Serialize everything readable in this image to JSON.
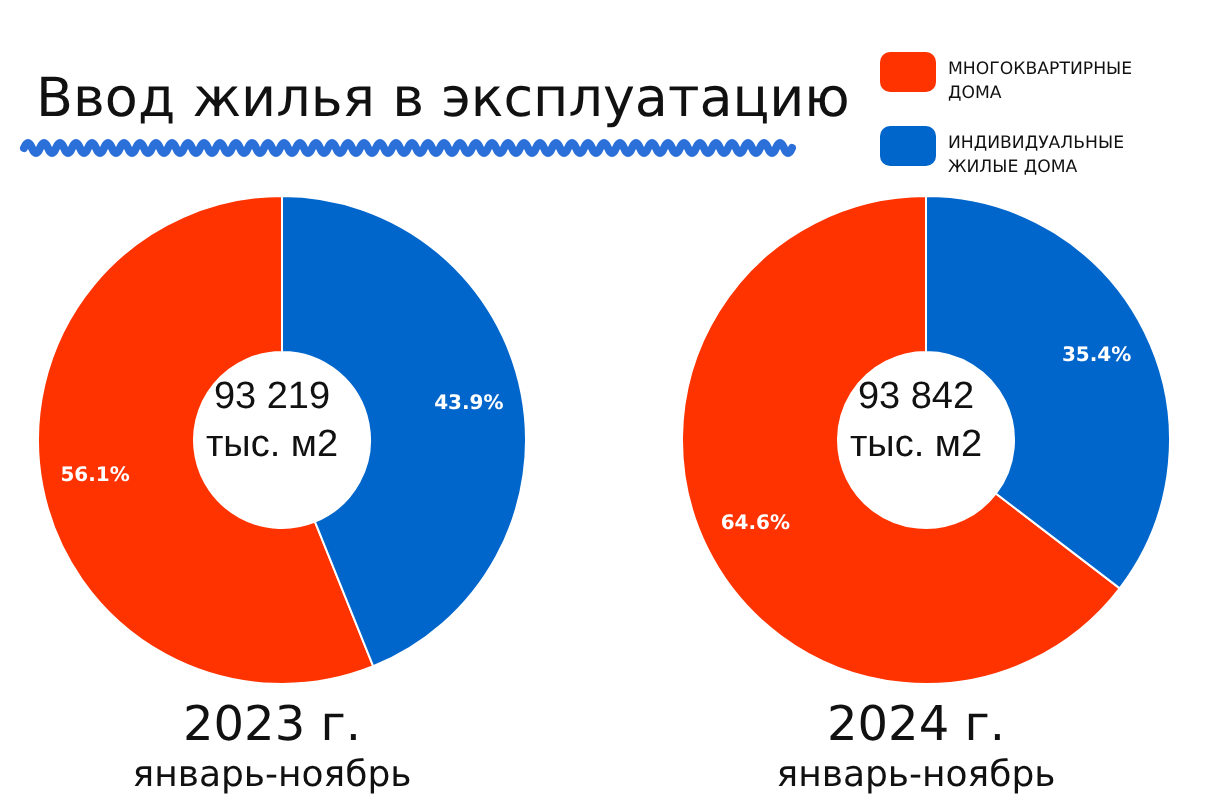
{
  "chart_data": [
    {
      "type": "donut",
      "title": "Ввод жилья в эксплуатацию",
      "categories": [
        null,
        null
      ],
      "values": [
        56.1,
        43.9
      ],
      "colors": [
        "#ff3300",
        "#0066cc"
      ],
      "value_labels": [
        "56.1%",
        "43.9%"
      ],
      "annotations": [
        "93 219",
        "тыс. м2",
        "2023 г.",
        "январь-ноябрь"
      ]
    },
    {
      "type": "donut",
      "categories": [
        "МНОГОКВАРТИРНЫЕ ДОМА",
        "ИНДИВИДУАЛЬНЫЕ ЖИЛЫЕ ДОМА"
      ],
      "values": [
        64.6,
        35.4
      ],
      "colors": [
        "#ff3300",
        "#0066cc"
      ],
      "value_labels": [
        "64.6%",
        "35.4%"
      ],
      "legend": "top right",
      "annotations": [
        "93 842",
        "тыс. м2",
        "2024 г.",
        "январь-ноябрь"
      ]
    }
  ]
}
